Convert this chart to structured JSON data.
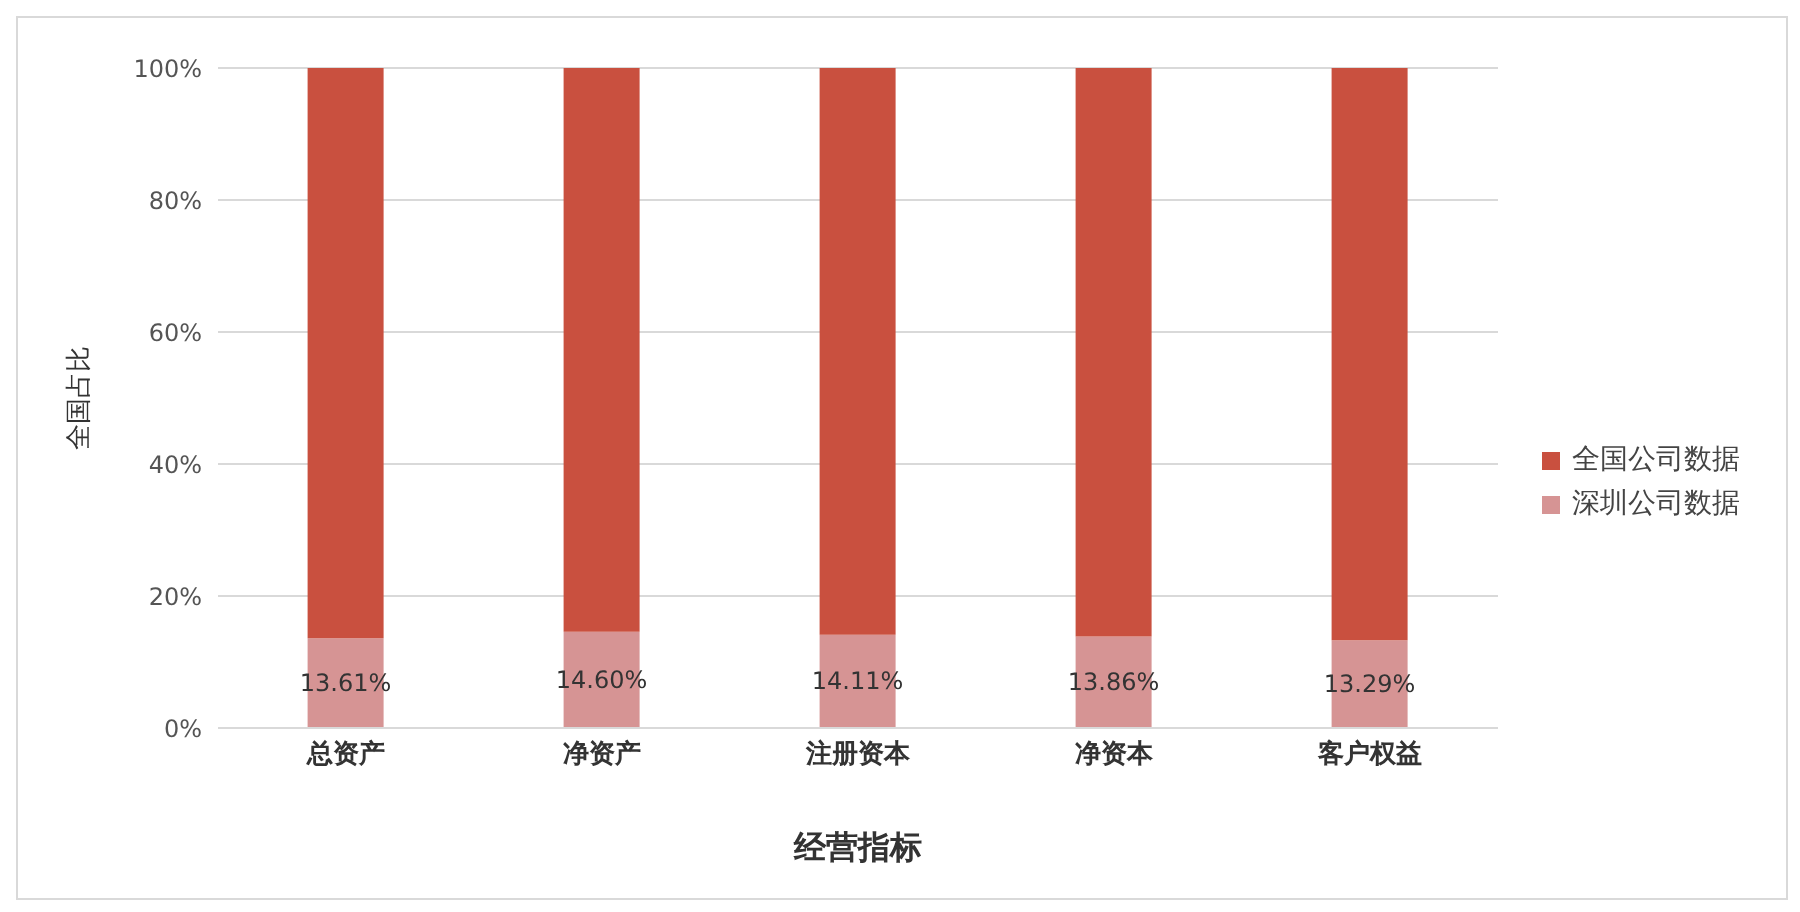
{
  "chart_data": {
    "type": "bar",
    "stacked": true,
    "xlabel": "经营指标",
    "ylabel": "全国占比",
    "categories": [
      "总资产",
      "净资产",
      "注册资本",
      "净资本",
      "客户权益"
    ],
    "series": [
      {
        "name": "深圳公司数据",
        "color": "#d69494",
        "values": [
          13.61,
          14.6,
          14.11,
          13.86,
          13.29
        ],
        "value_labels": [
          "13.61%",
          "14.60%",
          "14.11%",
          "13.86%",
          "13.29%"
        ]
      },
      {
        "name": "全国公司数据",
        "color": "#c9503f",
        "values": [
          86.39,
          85.4,
          85.89,
          86.14,
          86.71
        ]
      }
    ],
    "ylim": [
      0,
      100
    ],
    "yticks": [
      {
        "value": 0,
        "label": "0%"
      },
      {
        "value": 20,
        "label": "20%"
      },
      {
        "value": 40,
        "label": "40%"
      },
      {
        "value": 60,
        "label": "60%"
      },
      {
        "value": 80,
        "label": "80%"
      },
      {
        "value": 100,
        "label": "100%"
      }
    ],
    "grid": "y",
    "legend": "right"
  }
}
